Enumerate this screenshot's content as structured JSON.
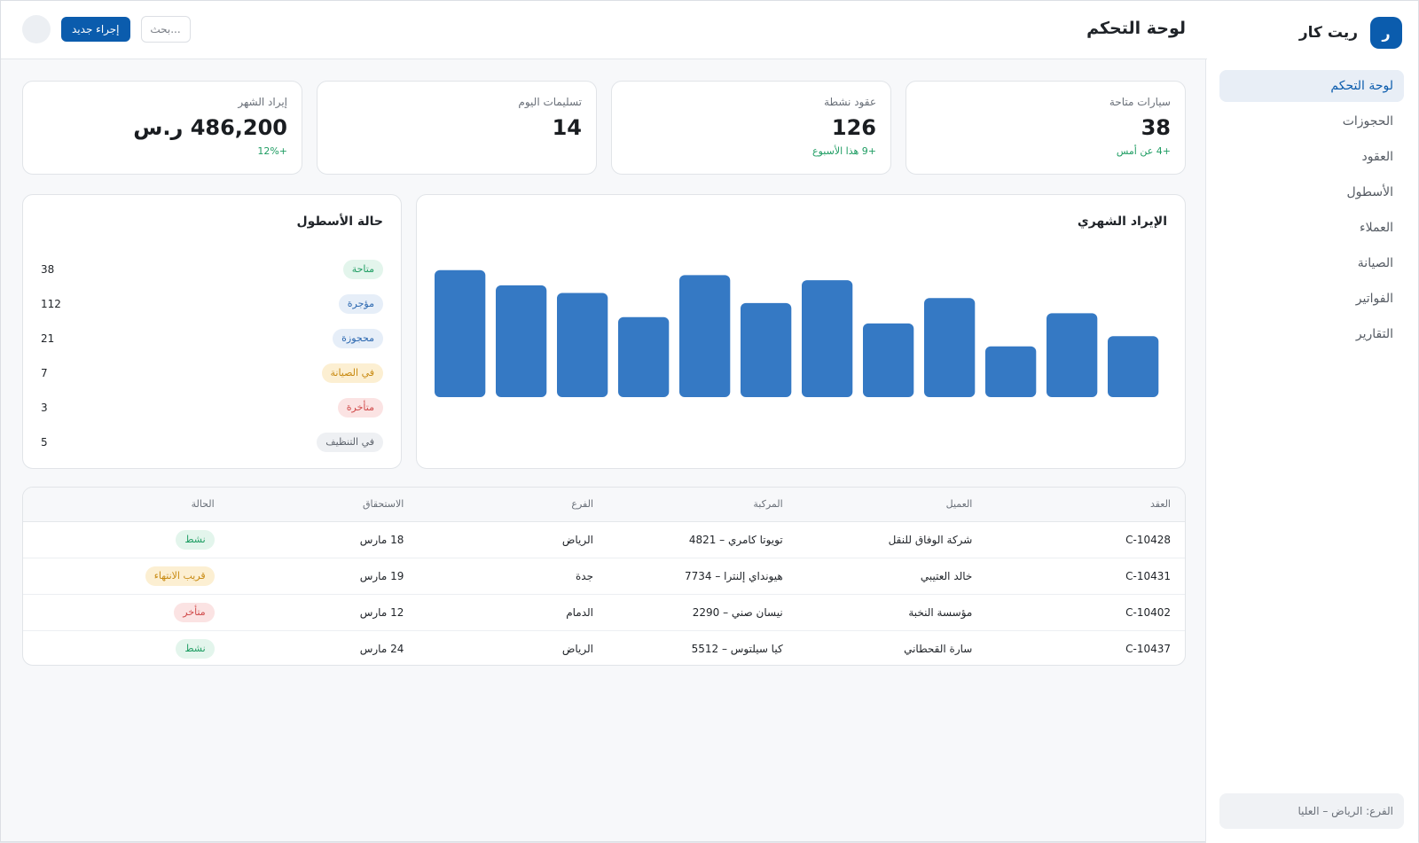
{
  "brand": {
    "logo_letter": "ر",
    "name": "ريت كار"
  },
  "sidebar": {
    "items": [
      {
        "label": "لوحة التحكم",
        "active": true
      },
      {
        "label": "الحجوزات",
        "active": false
      },
      {
        "label": "العقود",
        "active": false
      },
      {
        "label": "الأسطول",
        "active": false
      },
      {
        "label": "العملاء",
        "active": false
      },
      {
        "label": "الصيانة",
        "active": false
      },
      {
        "label": "الفواتير",
        "active": false
      },
      {
        "label": "التقارير",
        "active": false
      }
    ],
    "branch": "الفرع: الرياض – العليا"
  },
  "header": {
    "title": "لوحة التحكم",
    "search_placeholder": "بحث...",
    "new_action_label": "إجراء جديد"
  },
  "kpis": [
    {
      "label": "سيارات متاحة",
      "value": "38",
      "delta": "+4 عن أمس"
    },
    {
      "label": "عقود نشطة",
      "value": "126",
      "delta": "+9 هذا الأسبوع"
    },
    {
      "label": "تسليمات اليوم",
      "value": "14",
      "delta": ""
    },
    {
      "label": "إيراد الشهر",
      "value": "486,200 ر.س",
      "delta": "+12%"
    }
  ],
  "chart": {
    "title": "الإيراد الشهري"
  },
  "chart_data": {
    "type": "bar",
    "title": "الإيراد الشهري",
    "categories": [
      "",
      "",
      "",
      "",
      "",
      "",
      "",
      "",
      "",
      "",
      "",
      ""
    ],
    "values": [
      100,
      88,
      82,
      63,
      96,
      74,
      92,
      58,
      78,
      40,
      66,
      48
    ],
    "ylim": [
      0,
      120
    ],
    "grid": false,
    "color": "#3579c4"
  },
  "fleet": {
    "title": "حالة الأسطول",
    "rows": [
      {
        "label": "متاحة",
        "count": "38",
        "bg": "#e3f5ec",
        "fg": "#1f9d63"
      },
      {
        "label": "مؤجرة",
        "count": "112",
        "bg": "#e6eef8",
        "fg": "#2c68b0"
      },
      {
        "label": "محجوزة",
        "count": "21",
        "bg": "#e6eef8",
        "fg": "#2c68b0"
      },
      {
        "label": "في الصيانة",
        "count": "7",
        "bg": "#fcefd2",
        "fg": "#c88a12"
      },
      {
        "label": "متأخرة",
        "count": "3",
        "bg": "#fbe3e3",
        "fg": "#d04a4a"
      },
      {
        "label": "في التنظيف",
        "count": "5",
        "bg": "#eef0f3",
        "fg": "#5b616a"
      }
    ]
  },
  "table": {
    "headers": [
      "العقد",
      "العميل",
      "المركبة",
      "الفرع",
      "الاستحقاق",
      "الحالة"
    ],
    "rows": [
      {
        "contract": "C-10428",
        "customer": "شركة الوفاق للنقل",
        "vehicle": "تويوتا كامري – 4821",
        "branch": "الرياض",
        "due": "18 مارس",
        "status": "نشط",
        "status_bg": "#e3f5ec",
        "status_fg": "#1f9d63"
      },
      {
        "contract": "C-10431",
        "customer": "خالد العتيبي",
        "vehicle": "هيونداي إلنترا – 7734",
        "branch": "جدة",
        "due": "19 مارس",
        "status": "قريب الانتهاء",
        "status_bg": "#fcefd2",
        "status_fg": "#c88a12"
      },
      {
        "contract": "C-10402",
        "customer": "مؤسسة النخبة",
        "vehicle": "نيسان صني – 2290",
        "branch": "الدمام",
        "due": "12 مارس",
        "status": "متأخر",
        "status_bg": "#fbe3e3",
        "status_fg": "#d04a4a"
      },
      {
        "contract": "C-10437",
        "customer": "سارة القحطاني",
        "vehicle": "كيا سيلتوس – 5512",
        "branch": "الرياض",
        "due": "24 مارس",
        "status": "نشط",
        "status_bg": "#e3f5ec",
        "status_fg": "#1f9d63"
      }
    ]
  },
  "colors": {
    "accent": "#0b5cad",
    "positive": "#1f9d63"
  }
}
